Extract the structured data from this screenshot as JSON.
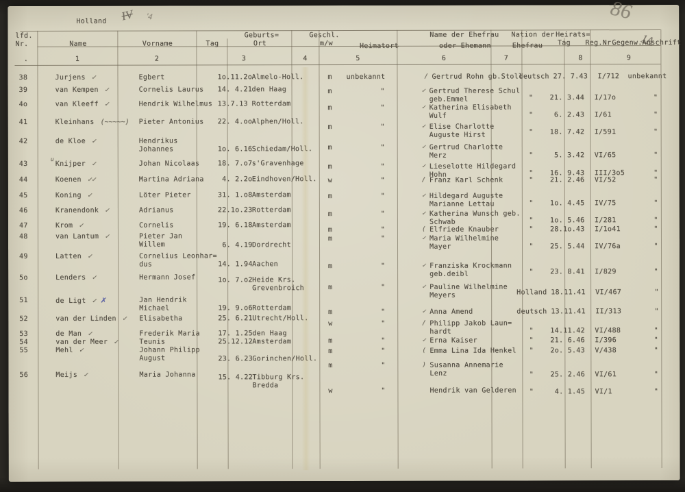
{
  "page": {
    "label": "Holland"
  },
  "annotations": {
    "top_scribble": "IV",
    "top_scribble_2": "'4",
    "corner_scribble_large": "86",
    "corner_scribble_small": "1A"
  },
  "header": {
    "lfd": "lfd.",
    "nr": "Nr.",
    "nr_dot": ".",
    "name": "Name",
    "vorname": "Vorname",
    "geburts": "Geburts=",
    "tag": "Tag",
    "ort": "Ort",
    "geschl": "Geschl.",
    "mw": "m/w",
    "heimatort": "Heimatort",
    "ehefrau_1": "Name der Ehefrau",
    "ehefrau_2": "oder Ehemann",
    "nation_1": "Nation der",
    "nation_2": "Ehefrau",
    "heirats": "Heirats=",
    "heirats_tag": "Tag",
    "reg": "Reg.Nr.",
    "gegenw": "Gegenw.Anschrift",
    "numbers": [
      "1",
      "2",
      "3",
      "4",
      "5",
      "6",
      "7",
      "8",
      "9"
    ]
  },
  "rows": [
    {
      "nr": "38",
      "name": "Jurjens",
      "name_mark": "✓",
      "vorname": "Egbert",
      "geb_tag": "1o.11.2o",
      "geb_ort": "Almelo-Holl.",
      "geschl": "m",
      "heimatort": "unbekannt",
      "ehefrau_mark": "/",
      "ehefrau": "Gertrud Rohn gb.Stoll",
      "nation": "deutsch",
      "heirat_tag": "27. 7.43",
      "reg_nr": "I/712",
      "gegenw": "unbekannt"
    },
    {
      "nr": "39",
      "name": "van Kempen",
      "name_mark": "✓",
      "vorname": "Cornelis Laurus",
      "geb_tag": "14. 4.21",
      "geb_ort": "den Haag",
      "geschl": "m",
      "heimatort": "\"",
      "ehefrau_mark": "✓",
      "ehefrau": "Gertrud Therese Schul\ngeb.Emmel",
      "nation": "\"",
      "heirat_tag": "21. 3.44",
      "reg_nr": "I/17o",
      "gegenw": "\""
    },
    {
      "nr": "4o",
      "name": "van Kleeff",
      "name_mark": "✓",
      "vorname": "Hendrik Wilhelmus",
      "geb_tag": "13.7.13",
      "geb_ort": "Rotterdam",
      "geschl": "m",
      "heimatort": "\"",
      "ehefrau_mark": "✓",
      "ehefrau": "Katherina Elisabeth\nWulf",
      "nation": "\"",
      "heirat_tag": " 6. 2.43",
      "reg_nr": "I/61",
      "gegenw": "\""
    },
    {
      "nr": "41",
      "name": "Kleinhans",
      "name_mark": "(~~~~~)",
      "vorname": "Pieter Antonius",
      "geb_tag": "22. 4.oo",
      "geb_ort": "Alphen/Holl.",
      "geschl": "m",
      "heimatort": "\"",
      "ehefrau_mark": "✓",
      "ehefrau": "Elise Charlotte\nAuguste Hirst",
      "nation": "\"",
      "heirat_tag": "18. 7.42",
      "reg_nr": "I/591",
      "gegenw": "\""
    },
    {
      "nr": "42",
      "name": "de Kloe",
      "name_mark": "✓",
      "vorname": "Hendrikus\nJohannes",
      "geb_tag": "1o. 6.16",
      "geb_ort": "Schiedam/Holl.",
      "geschl": "m",
      "heimatort": "\"",
      "ehefrau_mark": "✓",
      "ehefrau": "Gertrud Charlotte\nMerz",
      "nation": "\"",
      "heirat_tag": " 5. 3.42",
      "reg_nr": "VI/65",
      "gegenw": "\""
    },
    {
      "nr": "43",
      "name": "Knijper",
      "name_mark": "✓",
      "name_overmark": "u",
      "vorname": "Johan Nicolaas",
      "geb_tag": "18. 7.o7",
      "geb_ort": "s'Gravenhage",
      "geschl": "m",
      "heimatort": "\"",
      "ehefrau_mark": "✓",
      "ehefrau": "Lieselotte Hildegard\nHohn",
      "nation": "\"",
      "heirat_tag": "16. 9.43",
      "reg_nr": "III/3o5",
      "gegenw": "\""
    },
    {
      "nr": "44",
      "name": "Koenen",
      "name_mark": "✓✓",
      "vorname": "Martina Adriana",
      "geb_tag": " 4. 2.2o",
      "geb_ort": "Eindhoven/Holl.",
      "geschl": "w",
      "heimatort": "\"",
      "ehefrau_mark": "/",
      "ehefrau": "Franz Karl Schenk",
      "nation": "\"",
      "heirat_tag": "21. 2.46",
      "reg_nr": "VI/52",
      "gegenw": "\""
    },
    {
      "nr": "45",
      "name": "Koning",
      "name_mark": "✓",
      "vorname": "Löter Pieter",
      "geb_tag": "31. 1.o8",
      "geb_ort": "Amsterdam",
      "geschl": "m",
      "heimatort": "\"",
      "ehefrau_mark": "✓",
      "ehefrau": "Hildegard Auguste\nMarianne Lettau",
      "nation": "\"",
      "heirat_tag": "1o. 4.45",
      "reg_nr": "IV/75",
      "gegenw": "\""
    },
    {
      "nr": "46",
      "name": "Kranendonk",
      "name_mark": "✓",
      "vorname": "Adrianus",
      "geb_tag": "22.1o.23",
      "geb_ort": "Rotterdam",
      "geschl": "m",
      "heimatort": "\"",
      "ehefrau_mark": "✓",
      "ehefrau": "Katherina Wunsch geb.\nSchwab",
      "nation": "\"",
      "heirat_tag": "1o. 5.46",
      "reg_nr": "I/281",
      "gegenw": "\""
    },
    {
      "nr": "47",
      "name": "Krom",
      "name_mark": "✓",
      "vorname": "Cornelis",
      "geb_tag": "19. 6.18",
      "geb_ort": "Amsterdam",
      "geschl": "m",
      "heimatort": "\"",
      "ehefrau_mark": "(",
      "ehefrau": "Elfriede Knauber",
      "nation": "\"",
      "heirat_tag": "28.1o.43",
      "reg_nr": "I/1o41",
      "gegenw": "\""
    },
    {
      "nr": "48",
      "name": "van Lantum",
      "name_mark": "✓",
      "vorname": "Pieter Jan\nWillem",
      "geb_tag": " 6. 4.19",
      "geb_ort": "Dordrecht",
      "geschl": "m",
      "heimatort": "\"",
      "ehefrau_mark": "✓",
      "ehefrau": "Maria Wilhelmine\nMayer",
      "nation": "\"",
      "heirat_tag": "25. 5.44",
      "reg_nr": "IV/76a",
      "gegenw": "\""
    },
    {
      "nr": "49",
      "name": "Latten",
      "name_mark": "✓",
      "vorname": "Cornelius Leonhar=\ndus",
      "geb_tag": "14. 1.94",
      "geb_ort": "Aachen",
      "geschl": "m",
      "heimatort": "\"",
      "ehefrau_mark": "✓",
      "ehefrau": "Franziska Krockmann\ngeb.deibl",
      "nation": "\"",
      "heirat_tag": "23. 8.41",
      "reg_nr": "I/829",
      "gegenw": "\""
    },
    {
      "nr": "5o",
      "name": "Lenders",
      "name_mark": "✓",
      "vorname": "Hermann Josef",
      "geb_tag": "1o. 7.o2",
      "geb_ort": "Heide Krs.\nGrevenbroich",
      "geschl": "m",
      "heimatort": "\"",
      "ehefrau_mark": "✓",
      "ehefrau": "Pauline Wilhelmine\nMeyers",
      "nation": "Holland",
      "heirat_tag": "18.11.41",
      "reg_nr": "VI/467",
      "gegenw": "\""
    },
    {
      "nr": "51",
      "name": "de Ligt",
      "name_mark": "✓",
      "ink_mark": "✗",
      "vorname": "Jan Hendrik\nMichael",
      "geb_tag": "19. 9.o6",
      "geb_ort": "Rotterdam",
      "geschl": "m",
      "heimatort": "\"",
      "ehefrau_mark": "✓",
      "ehefrau": "Anna Amend",
      "nation": "deutsch",
      "heirat_tag": "13.11.41",
      "reg_nr": "II/313",
      "gegenw": "\""
    },
    {
      "nr": "52",
      "name": "van der Linden",
      "name_mark": "✓",
      "vorname": "Elisabetha",
      "geb_tag": "25. 6.21",
      "geb_ort": "Utrecht/Holl.",
      "geschl": "w",
      "heimatort": "\"",
      "ehefrau_mark": "/",
      "ehefrau": "Philipp Jakob Laun=\nhardt",
      "nation": "\"",
      "heirat_tag": "14.11.42",
      "reg_nr": "VI/488",
      "gegenw": "\""
    },
    {
      "nr": "53",
      "name": "de Man",
      "name_mark": "✓",
      "vorname": "Frederik Maria",
      "geb_tag": "17. 1.25",
      "geb_ort": "den Haag",
      "geschl": "m",
      "heimatort": "\"",
      "ehefrau_mark": "✓",
      "ehefrau": "Erna Kaiser",
      "nation": "\"",
      "heirat_tag": "21. 6.46",
      "reg_nr": "I/396",
      "gegenw": "\""
    },
    {
      "nr": "54",
      "name": "van der Meer",
      "name_mark": "✓",
      "vorname": "Teunis",
      "geb_tag": "25.12.12",
      "geb_ort": "Amsterdam",
      "geschl": "m",
      "heimatort": "\"",
      "ehefrau_mark": "(",
      "ehefrau": "Emma Lina Ida Henkel",
      "nation": "\"",
      "heirat_tag": "2o. 5.43",
      "reg_nr": "V/438",
      "gegenw": "\""
    },
    {
      "nr": "55",
      "name": "Mehl",
      "name_mark": "✓",
      "vorname": "Johann Philipp\nAugust",
      "geb_tag": "23. 6.23",
      "geb_ort": "Gorinchen/Holl.",
      "geschl": "m",
      "heimatort": "\"",
      "ehefrau_mark": ")",
      "ehefrau": "Susanna Annemarie\nLenz",
      "nation": "\"",
      "heirat_tag": "25. 2.46",
      "reg_nr": "VI/61",
      "gegenw": "\""
    },
    {
      "nr": "56",
      "name": "Meijs",
      "name_mark": "✓",
      "vorname": "Maria Johanna",
      "geb_tag": "15. 4.22",
      "geb_ort": "Tibburg Krs.\nBredda",
      "geschl": "w",
      "heimatort": "\"",
      "ehefrau_mark": "",
      "ehefrau": "Hendrik van Gelderen",
      "nation": "\"",
      "heirat_tag": " 4. 1.45",
      "reg_nr": "VI/1",
      "gegenw": "\""
    }
  ]
}
